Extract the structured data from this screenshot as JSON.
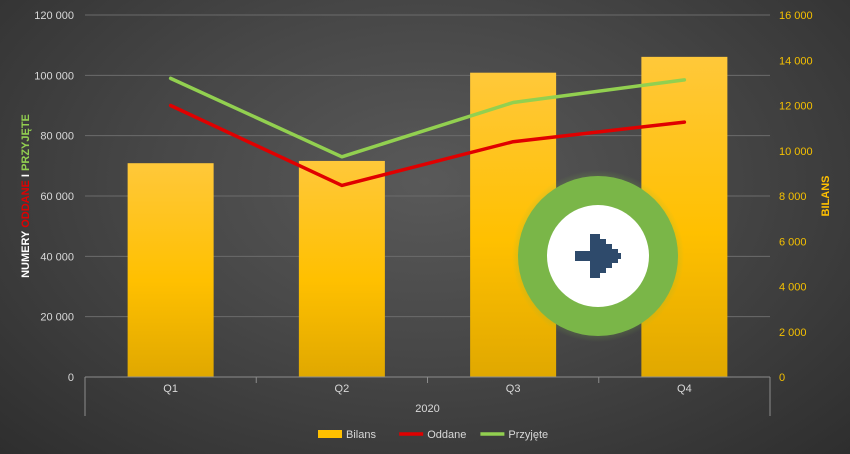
{
  "chart_data": {
    "type": "bar+line",
    "categories": [
      "Q1",
      "Q2",
      "Q3",
      "Q4"
    ],
    "group_label": "2020",
    "series": [
      {
        "name": "Bilans",
        "type": "bar",
        "axis": "right",
        "color": "#ffc000",
        "values": [
          9450,
          9550,
          13450,
          14150
        ]
      },
      {
        "name": "Oddane",
        "type": "line",
        "axis": "left",
        "color": "#e00000",
        "values": [
          90000,
          63500,
          78000,
          84500
        ]
      },
      {
        "name": "Przyjęte",
        "type": "line",
        "axis": "left",
        "color": "#92d050",
        "values": [
          99000,
          73000,
          91000,
          98500
        ]
      }
    ],
    "y_left": {
      "ylim": [
        0,
        120000
      ],
      "ticks": [
        0,
        20000,
        40000,
        60000,
        80000,
        100000,
        120000
      ],
      "tick_labels": [
        "0",
        "20 000",
        "40 000",
        "60 000",
        "80 000",
        "100 000",
        "120 000"
      ],
      "label_parts": [
        {
          "text": "NUMERY ",
          "color": "#ffffff"
        },
        {
          "text": "ODDANE",
          "color": "#e00000"
        },
        {
          "text": " I ",
          "color": "#ffffff"
        },
        {
          "text": "PRZYJĘTE",
          "color": "#92d050"
        }
      ]
    },
    "y_right": {
      "ylim": [
        0,
        16000
      ],
      "ticks": [
        0,
        2000,
        4000,
        6000,
        8000,
        10000,
        12000,
        14000,
        16000
      ],
      "tick_labels": [
        "0",
        "2 000",
        "4 000",
        "6 000",
        "8 000",
        "10 000",
        "12 000",
        "14 000",
        "16 000"
      ],
      "label": "BILANS",
      "color": "#ffc000"
    },
    "grid": true,
    "legend_position": "bottom"
  },
  "overlay": {
    "icon": "arrow-right-icon",
    "ring_color": "#7ab648",
    "arrow_color": "#2e4a6b"
  }
}
